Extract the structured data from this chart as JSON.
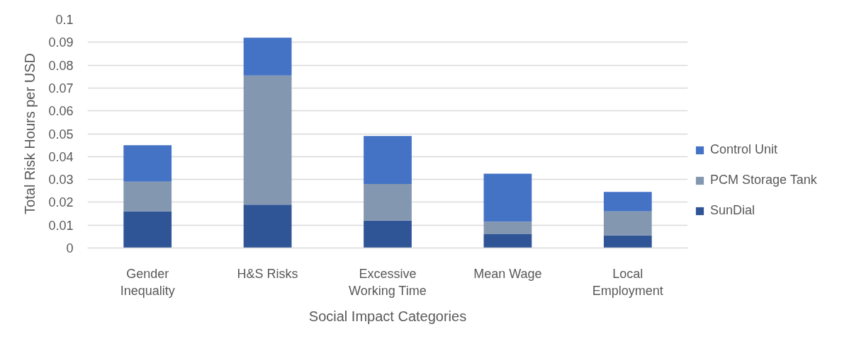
{
  "chart_data": {
    "type": "bar",
    "stacked": true,
    "xlabel": "Social Impact Categories",
    "ylabel": "Total Risk Hours per USD",
    "categories": [
      "Gender Inequality",
      "H&S Risks",
      "Excessive Working Time",
      "Mean Wage",
      "Local Employment"
    ],
    "series": [
      {
        "name": "SunDial",
        "color": "#2f5597",
        "values": [
          0.016,
          0.019,
          0.012,
          0.006,
          0.0055
        ]
      },
      {
        "name": "PCM Storage Tank",
        "color": "#8497b0",
        "values": [
          0.013,
          0.0565,
          0.016,
          0.0055,
          0.0105
        ]
      },
      {
        "name": "Control Unit",
        "color": "#4472c4",
        "values": [
          0.016,
          0.0165,
          0.021,
          0.021,
          0.0085
        ]
      }
    ],
    "ylim": [
      0,
      0.1
    ],
    "yticks": [
      0,
      0.01,
      0.02,
      0.03,
      0.04,
      0.05,
      0.06,
      0.07,
      0.08,
      0.09,
      0.1
    ],
    "grid": "y",
    "legend": "right"
  }
}
